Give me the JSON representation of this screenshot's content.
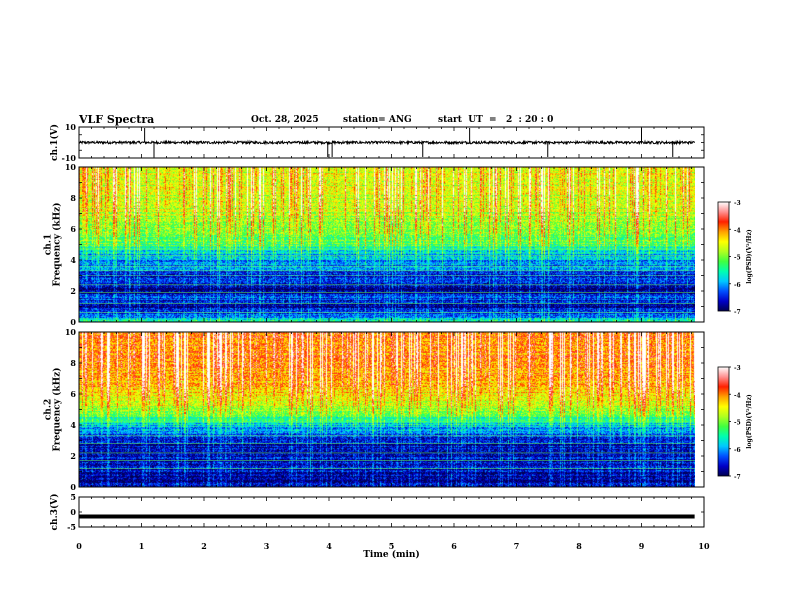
{
  "header": {
    "title": "VLF Spectra",
    "date": "Oct. 28, 2025",
    "station": "station= ANG",
    "start_ut": "start  UT  =   2  : 20 : 0"
  },
  "chart_data": [
    {
      "type": "line",
      "panel": "ch1-waveform",
      "ylabel": "ch.1(V)",
      "ylim": [
        -10,
        10
      ],
      "yticks": [
        "10",
        "-10"
      ],
      "xlim": [
        0,
        10
      ],
      "baseline": 0,
      "description_series": [
        {
          "name": "ch.1 voltage",
          "level": 0,
          "noise": 1,
          "spike_times": [
            1.05,
            1.2,
            3.98,
            4.05,
            5.5,
            6.25,
            7.5,
            9.0,
            9.5
          ]
        }
      ]
    },
    {
      "type": "heatmap",
      "panel": "ch1-spectrogram",
      "ylabel_top": "ch.1",
      "ylabel": "Frequency  (kHz)",
      "ylim": [
        0,
        10
      ],
      "yticks": [
        "0",
        "2",
        "4",
        "6",
        "8",
        "10"
      ],
      "xlim": [
        0,
        9.85
      ],
      "colorbar": {
        "label": "log(PSD)(V²/Hz)",
        "range": [
          -7,
          -3
        ],
        "ticks": [
          "-3",
          "-4",
          "-5",
          "-6",
          "-7"
        ]
      },
      "profile": [
        {
          "f": 0.0,
          "v": -5.4
        },
        {
          "f": 0.4,
          "v": -6.3
        },
        {
          "f": 1.0,
          "v": -6.8
        },
        {
          "f": 1.6,
          "v": -6.4
        },
        {
          "f": 2.0,
          "v": -6.9
        },
        {
          "f": 3.0,
          "v": -6.5
        },
        {
          "f": 3.6,
          "v": -6.2
        },
        {
          "f": 4.4,
          "v": -6.0
        },
        {
          "f": 5.0,
          "v": -5.3
        },
        {
          "f": 6.0,
          "v": -5.0
        },
        {
          "f": 7.0,
          "v": -4.8
        },
        {
          "f": 8.0,
          "v": -4.7
        },
        {
          "f": 10.0,
          "v": -4.6
        }
      ],
      "sferic_density": 0.55,
      "harmonic_lines_khz": [
        0.6,
        1.2,
        1.9,
        2.4,
        3.0,
        3.3,
        3.6,
        4.3,
        4.7
      ]
    },
    {
      "type": "heatmap",
      "panel": "ch2-spectrogram",
      "ylabel_top": "ch.2",
      "ylabel": "Frequency  (kHz)",
      "ylim": [
        0,
        10
      ],
      "yticks": [
        "0",
        "2",
        "4",
        "6",
        "8",
        "10"
      ],
      "xlim": [
        0,
        9.85
      ],
      "colorbar": {
        "label": "log(PSD)(V²/Hz)",
        "range": [
          -7,
          -3
        ],
        "ticks": [
          "-3",
          "-4",
          "-5",
          "-6",
          "-7"
        ]
      },
      "profile": [
        {
          "f": 0.0,
          "v": -6.6
        },
        {
          "f": 0.5,
          "v": -6.9
        },
        {
          "f": 1.5,
          "v": -6.6
        },
        {
          "f": 2.5,
          "v": -6.8
        },
        {
          "f": 3.5,
          "v": -6.3
        },
        {
          "f": 4.3,
          "v": -5.6
        },
        {
          "f": 5.0,
          "v": -4.9
        },
        {
          "f": 6.0,
          "v": -4.4
        },
        {
          "f": 7.5,
          "v": -4.1
        },
        {
          "f": 9.0,
          "v": -4.0
        },
        {
          "f": 10.0,
          "v": -4.0
        }
      ],
      "sferic_density": 0.75,
      "harmonic_lines_khz": [
        1.2,
        1.7,
        2.2,
        2.8,
        3.3,
        4.2
      ]
    },
    {
      "type": "line",
      "panel": "ch3-waveform",
      "ylabel": "ch.3(V)",
      "ylim": [
        -5,
        5
      ],
      "yticks": [
        "5",
        "0",
        "-5"
      ],
      "xlim": [
        0,
        10
      ],
      "baseline": -1.5,
      "description_series": [
        {
          "name": "ch.3 voltage",
          "level": -1.5
        }
      ]
    }
  ],
  "x_axis": {
    "label": "Time  (min)",
    "ticks": [
      "0",
      "1",
      "2",
      "3",
      "4",
      "5",
      "6",
      "7",
      "8",
      "9",
      "10"
    ],
    "range": [
      0,
      10
    ]
  },
  "colors": {
    "ink": "#000000",
    "colormap": [
      "#000050",
      "#0000c8",
      "#0050ff",
      "#00c8ff",
      "#00ffb0",
      "#40ff40",
      "#b0ff20",
      "#ffff00",
      "#ffa000",
      "#ff2000",
      "#ff9090",
      "#ffffff"
    ]
  }
}
